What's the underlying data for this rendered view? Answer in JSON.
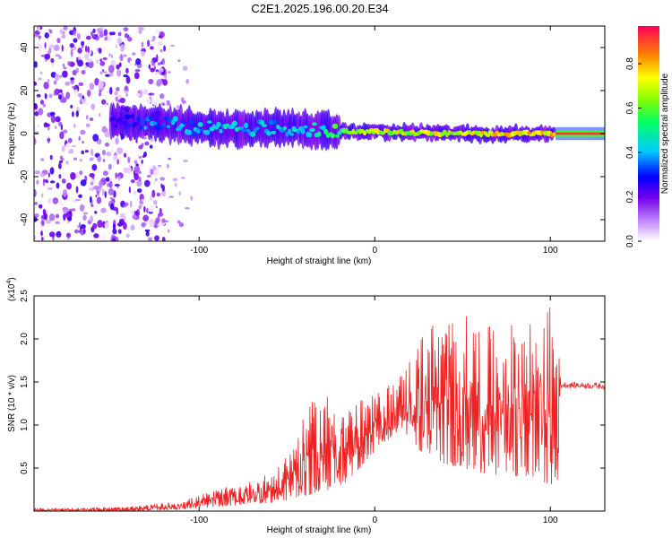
{
  "title": "C2E1.2025.196.00.20.E34",
  "chart_data": [
    {
      "type": "heatmap",
      "xlabel": "Height of straight line (km)",
      "ylabel": "Frequency (Hz)",
      "xlim": [
        -194,
        131
      ],
      "ylim": [
        -50,
        50
      ],
      "xticks": [
        -100,
        0,
        100
      ],
      "yticks": [
        -40,
        -20,
        0,
        20,
        40
      ],
      "colorbar": {
        "label": "Normalized spectral amplitude",
        "range": [
          0,
          0.97
        ],
        "ticks": [
          0.0,
          0.2,
          0.4,
          0.6,
          0.8
        ]
      },
      "ridge": [
        {
          "x": -150,
          "freq": 6,
          "amp": 0.25
        },
        {
          "x": -130,
          "freq": 5,
          "amp": 0.4
        },
        {
          "x": -100,
          "freq": 3,
          "amp": 0.45
        },
        {
          "x": -80,
          "freq": 2,
          "amp": 0.5
        },
        {
          "x": -60,
          "freq": 3,
          "amp": 0.45
        },
        {
          "x": -40,
          "freq": 2,
          "amp": 0.5
        },
        {
          "x": -20,
          "freq": 1,
          "amp": 0.6
        },
        {
          "x": 0,
          "freq": 1,
          "amp": 0.75
        },
        {
          "x": 20,
          "freq": 0.5,
          "amp": 0.8
        },
        {
          "x": 50,
          "freq": 0,
          "amp": 0.8
        },
        {
          "x": 80,
          "freq": 0,
          "amp": 0.85
        },
        {
          "x": 103,
          "freq": 0,
          "amp": 0.9
        },
        {
          "x": 131,
          "freq": 0,
          "amp": 0.95
        }
      ]
    },
    {
      "type": "line",
      "xlabel": "Height of straight line (km)",
      "ylabel": "SNR (10 * v/v)",
      "multiplier_label": "(x10",
      "multiplier_exp": "4",
      "multiplier_close": ")",
      "xlim": [
        -194,
        131
      ],
      "ylim": [
        0,
        2.5
      ],
      "xticks": [
        -100,
        0,
        100
      ],
      "yticks": [
        0.5,
        1.0,
        1.5,
        2.0,
        2.5
      ],
      "series": [
        {
          "color": "#ee2222",
          "envelope": [
            {
              "x": -194,
              "low": 0.0,
              "high": 0.03
            },
            {
              "x": -140,
              "low": 0.0,
              "high": 0.05
            },
            {
              "x": -110,
              "low": 0.02,
              "high": 0.12
            },
            {
              "x": -90,
              "low": 0.05,
              "high": 0.25
            },
            {
              "x": -70,
              "low": 0.08,
              "high": 0.35
            },
            {
              "x": -55,
              "low": 0.1,
              "high": 0.5
            },
            {
              "x": -45,
              "low": 0.15,
              "high": 0.9
            },
            {
              "x": -35,
              "low": 0.2,
              "high": 1.3
            },
            {
              "x": -25,
              "low": 0.25,
              "high": 1.4
            },
            {
              "x": -15,
              "low": 0.35,
              "high": 1.25
            },
            {
              "x": 0,
              "low": 0.7,
              "high": 1.35
            },
            {
              "x": 15,
              "low": 0.95,
              "high": 1.6
            },
            {
              "x": 30,
              "low": 0.6,
              "high": 2.2
            },
            {
              "x": 50,
              "low": 0.5,
              "high": 2.3
            },
            {
              "x": 70,
              "low": 0.4,
              "high": 2.1
            },
            {
              "x": 90,
              "low": 0.4,
              "high": 2.3
            },
            {
              "x": 100,
              "low": 0.3,
              "high": 2.4
            },
            {
              "x": 104,
              "low": 0.3,
              "high": 2.1
            },
            {
              "x": 106,
              "low": 1.43,
              "high": 1.5
            },
            {
              "x": 131,
              "low": 1.42,
              "high": 1.49
            }
          ]
        }
      ]
    }
  ]
}
